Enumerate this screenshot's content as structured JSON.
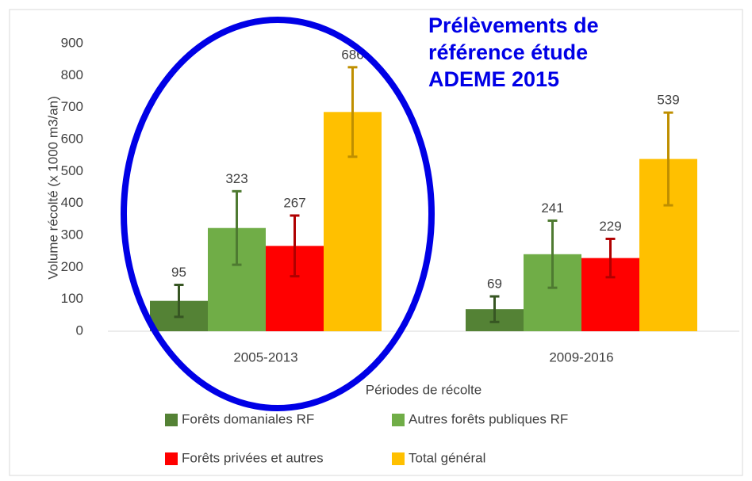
{
  "chart_data": {
    "type": "bar",
    "annotation": [
      "Prélèvements de",
      "référence étude",
      "ADEME 2015"
    ],
    "ylabel": "Volume récolté (x 1000 m3/an)",
    "xlabel": "Périodes de récolte",
    "categories": [
      "2005-2013",
      "2009-2016"
    ],
    "series": [
      {
        "name": "Forêts domaniales RF",
        "color": "#548235",
        "error_color": "#375623",
        "values": [
          95,
          69
        ],
        "errors": [
          50,
          40
        ]
      },
      {
        "name": "Autres forêts publiques RF",
        "color": "#70ad47",
        "error_color": "#4e7a31",
        "values": [
          323,
          241
        ],
        "errors": [
          115,
          105
        ]
      },
      {
        "name": "Forêts privées et autres",
        "color": "#ff0000",
        "error_color": "#b00000",
        "values": [
          267,
          229
        ],
        "errors": [
          95,
          60
        ]
      },
      {
        "name": "Total général",
        "color": "#ffc000",
        "error_color": "#bf8f00",
        "values": [
          686,
          539
        ],
        "errors": [
          140,
          145
        ]
      }
    ],
    "ylim": [
      0,
      900
    ],
    "yticks": [
      0,
      100,
      200,
      300,
      400,
      500,
      600,
      700,
      800,
      900
    ],
    "grid": false
  }
}
